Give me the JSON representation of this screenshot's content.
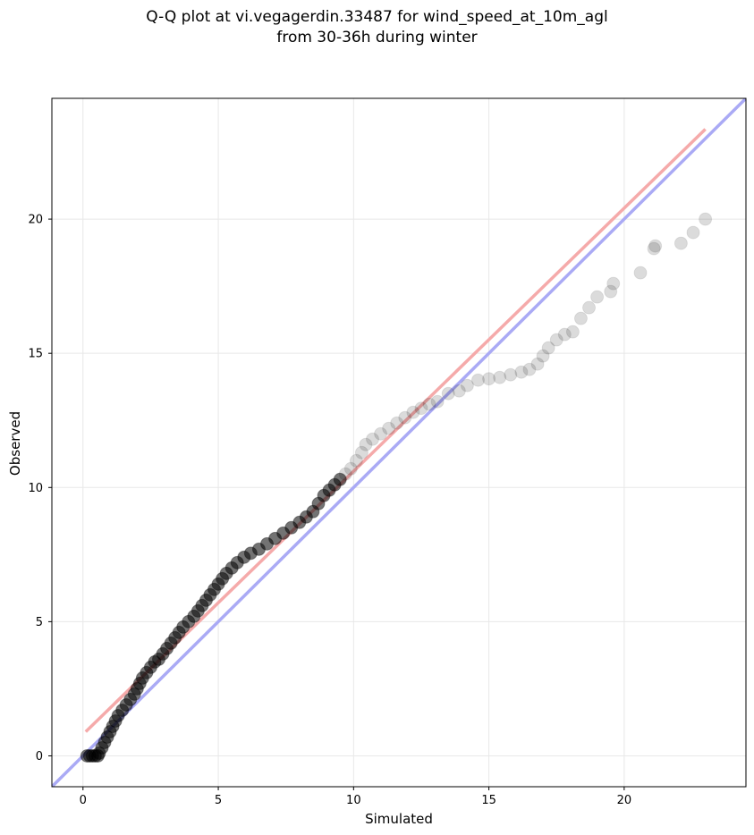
{
  "chart_data": {
    "type": "scatter",
    "title": [
      "Q-Q plot at vi.vegagerdin.33487 for wind_speed_at_10m_agl",
      "from 30-36h during winter"
    ],
    "xlabel": "Simulated",
    "ylabel": "Observed",
    "xlim": [
      -1.15,
      24.5
    ],
    "ylim": [
      -1.15,
      24.5
    ],
    "xticks": [
      0,
      5,
      10,
      15,
      20
    ],
    "yticks": [
      0,
      5,
      10,
      15,
      20
    ],
    "grid": true,
    "reference_lines": [
      {
        "label": "identity",
        "color": "#aaaaf5",
        "x": [
          -1.15,
          24.5
        ],
        "y": [
          -1.15,
          24.5
        ]
      },
      {
        "label": "fit",
        "color": "#f5aaaa",
        "x": [
          0.1,
          23.0
        ],
        "y": [
          0.9,
          23.35
        ]
      }
    ],
    "points": {
      "color": "#000000",
      "data": [
        [
          0.15,
          0.0
        ],
        [
          0.25,
          0.0
        ],
        [
          0.35,
          0.0
        ],
        [
          0.45,
          0.0
        ],
        [
          0.55,
          0.0
        ],
        [
          0.6,
          0.1
        ],
        [
          0.7,
          0.3
        ],
        [
          0.8,
          0.5
        ],
        [
          0.9,
          0.7
        ],
        [
          1.0,
          0.9
        ],
        [
          1.1,
          1.1
        ],
        [
          1.2,
          1.3
        ],
        [
          1.3,
          1.5
        ],
        [
          1.45,
          1.7
        ],
        [
          1.6,
          1.9
        ],
        [
          1.75,
          2.1
        ],
        [
          1.9,
          2.3
        ],
        [
          2.0,
          2.5
        ],
        [
          2.1,
          2.7
        ],
        [
          2.2,
          2.9
        ],
        [
          2.35,
          3.1
        ],
        [
          2.5,
          3.3
        ],
        [
          2.65,
          3.5
        ],
        [
          2.8,
          3.6
        ],
        [
          2.95,
          3.8
        ],
        [
          3.1,
          4.0
        ],
        [
          3.25,
          4.2
        ],
        [
          3.4,
          4.4
        ],
        [
          3.55,
          4.6
        ],
        [
          3.7,
          4.8
        ],
        [
          3.9,
          5.0
        ],
        [
          4.1,
          5.2
        ],
        [
          4.25,
          5.4
        ],
        [
          4.4,
          5.6
        ],
        [
          4.55,
          5.8
        ],
        [
          4.7,
          6.0
        ],
        [
          4.85,
          6.2
        ],
        [
          5.0,
          6.4
        ],
        [
          5.15,
          6.6
        ],
        [
          5.3,
          6.8
        ],
        [
          5.5,
          7.0
        ],
        [
          5.7,
          7.2
        ],
        [
          5.95,
          7.4
        ],
        [
          6.2,
          7.55
        ],
        [
          6.5,
          7.7
        ],
        [
          6.8,
          7.9
        ],
        [
          7.1,
          8.1
        ],
        [
          7.4,
          8.3
        ],
        [
          7.7,
          8.5
        ],
        [
          8.0,
          8.7
        ],
        [
          8.25,
          8.9
        ],
        [
          8.5,
          9.1
        ],
        [
          8.7,
          9.4
        ],
        [
          8.9,
          9.7
        ],
        [
          9.1,
          9.9
        ],
        [
          9.3,
          10.1
        ],
        [
          9.5,
          10.3
        ],
        [
          9.7,
          10.5
        ],
        [
          9.9,
          10.7
        ],
        [
          10.1,
          11.0
        ],
        [
          10.3,
          11.3
        ],
        [
          10.45,
          11.6
        ],
        [
          10.7,
          11.8
        ],
        [
          11.0,
          12.0
        ],
        [
          11.3,
          12.2
        ],
        [
          11.6,
          12.4
        ],
        [
          11.9,
          12.6
        ],
        [
          12.2,
          12.8
        ],
        [
          12.5,
          12.95
        ],
        [
          12.8,
          13.1
        ],
        [
          13.1,
          13.2
        ],
        [
          13.5,
          13.5
        ],
        [
          13.9,
          13.6
        ],
        [
          14.2,
          13.8
        ],
        [
          14.6,
          14.0
        ],
        [
          15.0,
          14.05
        ],
        [
          15.4,
          14.1
        ],
        [
          15.8,
          14.2
        ],
        [
          16.2,
          14.3
        ],
        [
          16.5,
          14.4
        ],
        [
          16.8,
          14.6
        ],
        [
          17.0,
          14.9
        ],
        [
          17.2,
          15.2
        ],
        [
          17.5,
          15.5
        ],
        [
          17.8,
          15.7
        ],
        [
          18.1,
          15.8
        ],
        [
          18.4,
          16.3
        ],
        [
          18.7,
          16.7
        ],
        [
          19.0,
          17.1
        ],
        [
          19.5,
          17.3
        ],
        [
          19.6,
          17.6
        ],
        [
          20.6,
          18.0
        ],
        [
          21.1,
          18.9
        ],
        [
          21.15,
          19.0
        ],
        [
          22.1,
          19.1
        ],
        [
          22.55,
          19.5
        ],
        [
          23.0,
          20.0
        ]
      ]
    }
  }
}
